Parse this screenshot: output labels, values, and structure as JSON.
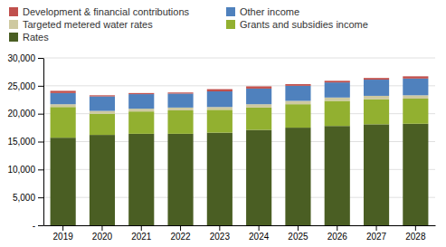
{
  "chart_data": {
    "type": "bar",
    "stacked": true,
    "grid": true,
    "legend": "top-left",
    "categories": [
      "2019",
      "2020",
      "2021",
      "2022",
      "2023",
      "2024",
      "2025",
      "2026",
      "2027",
      "2028"
    ],
    "series": [
      {
        "name": "Rates",
        "color": "#4a5e23",
        "values": [
          15700,
          16200,
          16400,
          16400,
          16600,
          17100,
          17500,
          17800,
          18100,
          18200
        ]
      },
      {
        "name": "Grants and subsidies income",
        "color": "#92b030",
        "values": [
          5500,
          3800,
          4000,
          4200,
          4100,
          4000,
          4200,
          4500,
          4500,
          4500
        ]
      },
      {
        "name": "Targeted metered water rates",
        "color": "#cec9a0",
        "values": [
          500,
          500,
          500,
          500,
          500,
          600,
          600,
          600,
          600,
          600
        ]
      },
      {
        "name": "Other income",
        "color": "#4f81bd",
        "values": [
          2000,
          2600,
          2600,
          2500,
          2800,
          2800,
          2700,
          2700,
          2900,
          3000
        ]
      },
      {
        "name": "Development & financial contributions",
        "color": "#c0504d",
        "values": [
          400,
          200,
          200,
          200,
          400,
          400,
          300,
          300,
          300,
          400
        ]
      }
    ],
    "ylim": [
      0,
      30000
    ],
    "yticks": [
      {
        "value": 0,
        "label": "-"
      },
      {
        "value": 5000,
        "label": "5,000"
      },
      {
        "value": 10000,
        "label": "10,000"
      },
      {
        "value": 15000,
        "label": "15,000"
      },
      {
        "value": 20000,
        "label": "20,000"
      },
      {
        "value": 25000,
        "label": "25,000"
      },
      {
        "value": 30000,
        "label": "30,000"
      }
    ]
  }
}
